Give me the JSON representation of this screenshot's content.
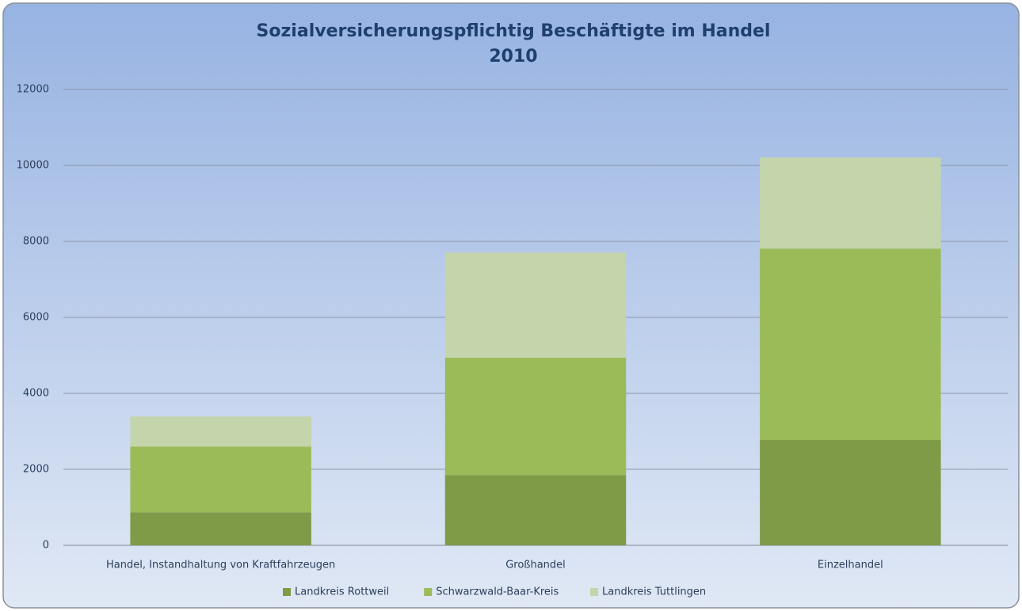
{
  "chart_data": {
    "type": "stacked_bar",
    "title": "Sozialversicherungspflichtig Beschäftigte im Handel",
    "subtitle": "2010",
    "categories": [
      "Handel, Instandhaltung von Kraftfahrzeugen",
      "Großhandel",
      "Einzelhandel"
    ],
    "series": [
      {
        "name": "Landkreis Rottweil",
        "color": "#7f9b47",
        "values": [
          870,
          1850,
          2770
        ]
      },
      {
        "name": "Schwarzwald-Baar-Kreis",
        "color": "#9bbb59",
        "values": [
          1730,
          3090,
          5040
        ]
      },
      {
        "name": "Landkreis Tuttlingen",
        "color": "#c4d5ab",
        "values": [
          790,
          2770,
          2400
        ]
      }
    ],
    "ylim": [
      0,
      12000
    ],
    "yticks": [
      0,
      2000,
      4000,
      6000,
      8000,
      10000,
      12000
    ],
    "grid": true,
    "legend": "bottom"
  }
}
